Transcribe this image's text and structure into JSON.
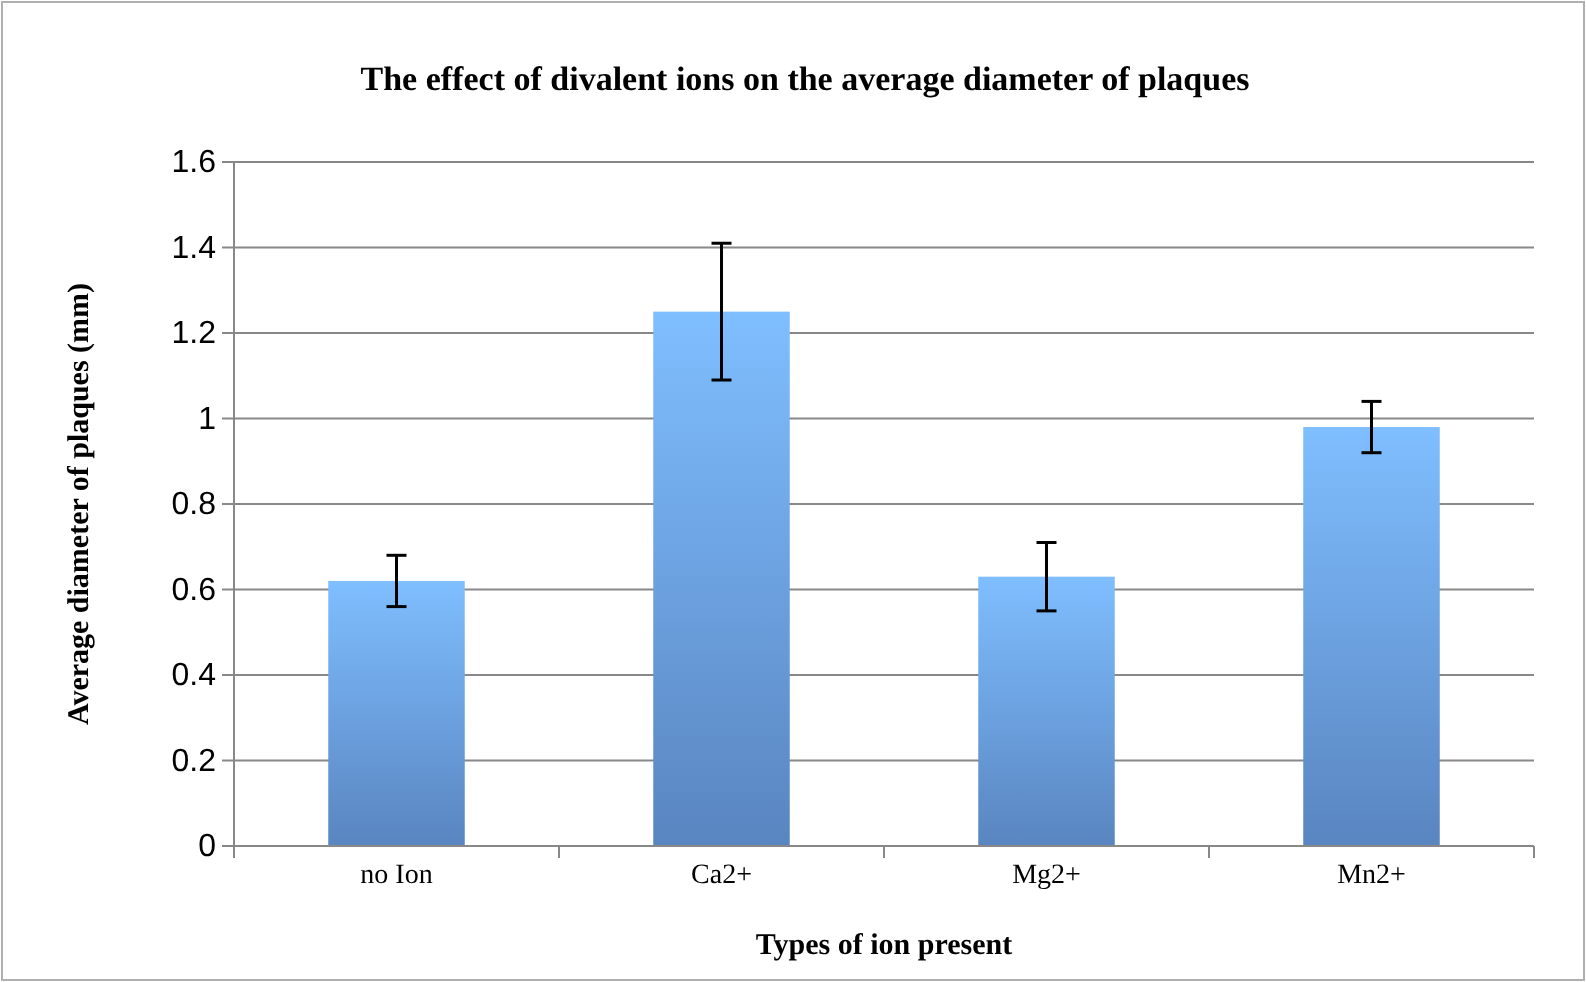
{
  "chart_data": {
    "type": "bar",
    "title": "The effect of divalent ions on the average diameter of plaques",
    "xlabel": "Types of ion present",
    "ylabel": "Average diameter of plaques (mm)",
    "categories": [
      "no Ion",
      "Ca2+",
      "Mg2+",
      "Mn2+"
    ],
    "values": [
      0.62,
      1.25,
      0.63,
      0.98
    ],
    "errors": [
      0.06,
      0.16,
      0.08,
      0.06
    ],
    "color": "#6a9fe6",
    "ylim": [
      0,
      1.6
    ],
    "yticks": [
      0,
      {
        "value": 0.2,
        "label": "0.2"
      },
      {
        "value": 0.4,
        "label": "0.4"
      },
      {
        "value": 0.6,
        "label": "0.6"
      },
      {
        "value": 0.8,
        "label": "0.8"
      },
      1,
      {
        "value": 1.2,
        "label": "1.2"
      },
      {
        "value": 1.4,
        "label": "1.4"
      },
      {
        "value": 1.6,
        "label": "1.6"
      }
    ],
    "grid": "y"
  }
}
